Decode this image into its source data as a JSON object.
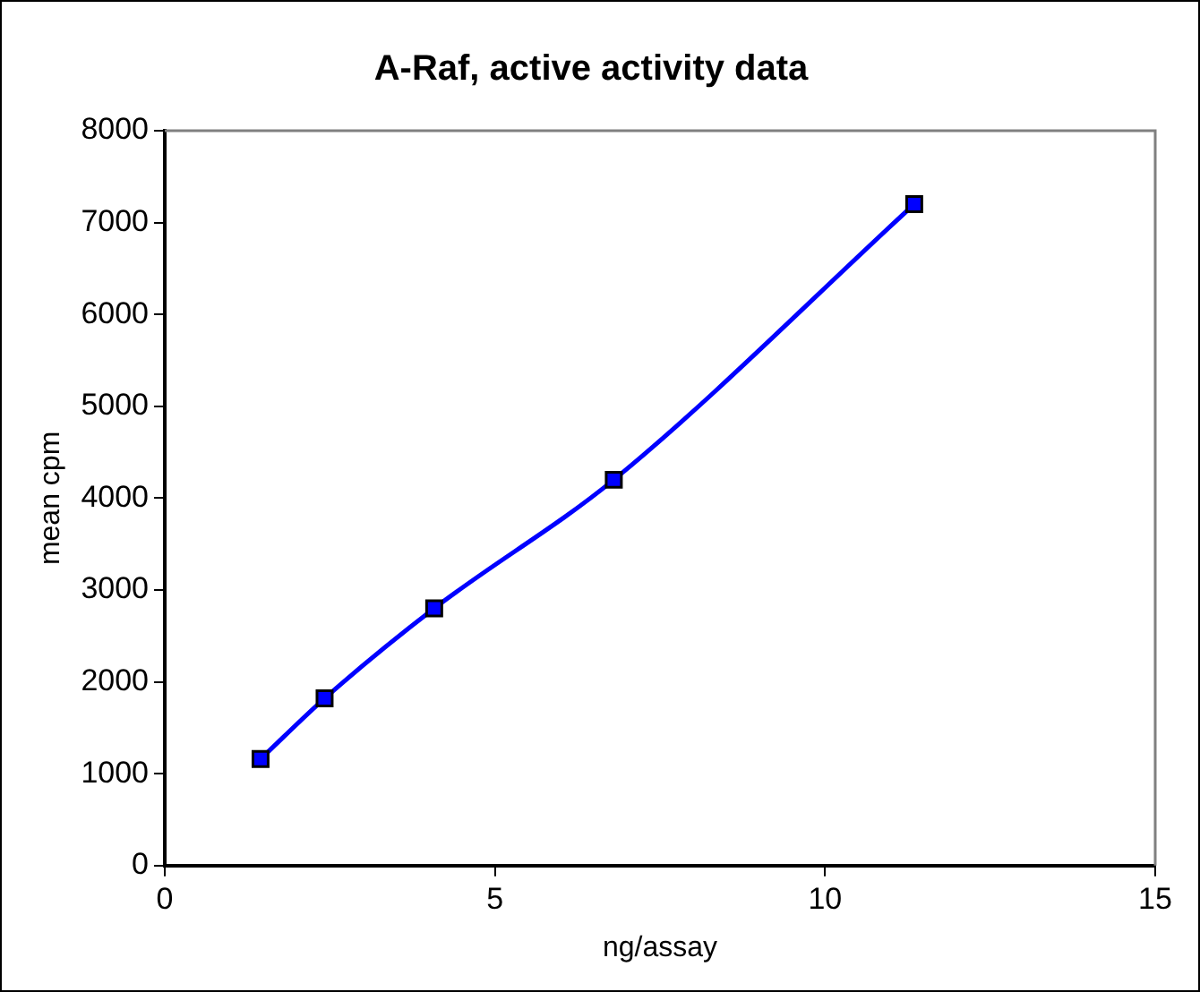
{
  "chart_data": {
    "type": "line",
    "title": "A-Raf, active activity data",
    "xlabel": "ng/assay",
    "ylabel": "mean cpm",
    "x": [
      1.45,
      2.42,
      4.08,
      6.8,
      11.35
    ],
    "series": [
      {
        "color": "#0000ff",
        "values": [
          1160,
          1820,
          2800,
          4200,
          7200
        ]
      }
    ],
    "xlim": [
      0,
      15
    ],
    "xticks": [
      0,
      5,
      10,
      15
    ],
    "ylim": [
      0,
      8000
    ],
    "yticks": [
      0,
      1000,
      2000,
      3000,
      4000,
      5000,
      6000,
      7000,
      8000
    ],
    "grid": false,
    "legend": false,
    "marker": "square",
    "line_style": "solid"
  }
}
